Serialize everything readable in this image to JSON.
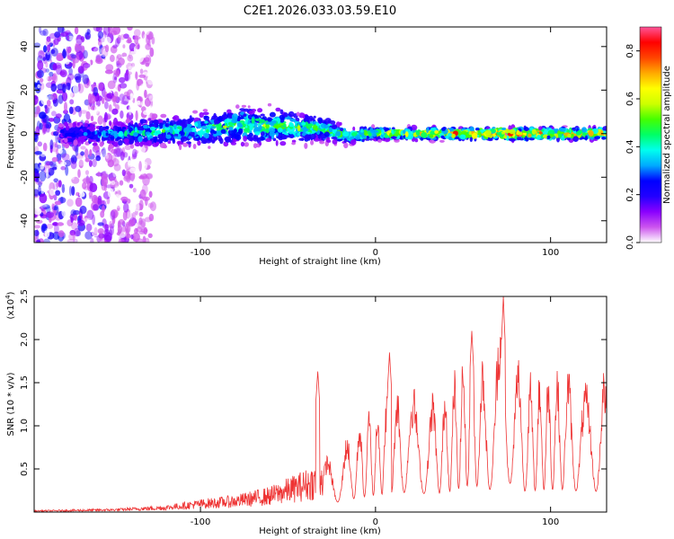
{
  "title": "C2E1.2026.033.03.59.E10",
  "chart_data": [
    {
      "type": "heatmap",
      "title": "C2E1.2026.033.03.59.E10",
      "xlabel": "Height of straight line (km)",
      "ylabel": "Frequency (Hz)",
      "xlim": [
        -195,
        132
      ],
      "ylim": [
        -50,
        49
      ],
      "xticks": [
        -100,
        0,
        100
      ],
      "yticks": [
        -40,
        -20,
        0,
        20,
        40
      ],
      "colorbar": {
        "label": "Normalized spectral amplitude",
        "range": [
          0.0,
          0.9
        ],
        "ticks": [
          0.0,
          0.2,
          0.4,
          0.6,
          0.8
        ],
        "colors": [
          "#ffffff",
          "#cc55ee",
          "#8a00ff",
          "#2200ff",
          "#0000ff",
          "#00aaff",
          "#00ffee",
          "#00ff66",
          "#44ff00",
          "#ccff00",
          "#ffff00",
          "#ffaa00",
          "#ff4400",
          "#ff0000",
          "#ff5599"
        ]
      },
      "band": [
        {
          "x": -175,
          "center": 0,
          "halfwidth": 6,
          "amp": 0.25
        },
        {
          "x": -150,
          "center": 0,
          "halfwidth": 6,
          "amp": 0.35
        },
        {
          "x": -125,
          "center": 1,
          "halfwidth": 7,
          "amp": 0.45
        },
        {
          "x": -100,
          "center": 2,
          "halfwidth": 8,
          "amp": 0.45
        },
        {
          "x": -75,
          "center": 4,
          "halfwidth": 9,
          "amp": 0.5
        },
        {
          "x": -50,
          "center": 3,
          "halfwidth": 8,
          "amp": 0.5
        },
        {
          "x": -30,
          "center": 2,
          "halfwidth": 6,
          "amp": 0.5
        },
        {
          "x": -15,
          "center": -1,
          "halfwidth": 4,
          "amp": 0.55
        },
        {
          "x": 0,
          "center": 0,
          "halfwidth": 3,
          "amp": 0.6
        },
        {
          "x": 25,
          "center": 0,
          "halfwidth": 3,
          "amp": 0.7
        },
        {
          "x": 50,
          "center": 0,
          "halfwidth": 3,
          "amp": 0.75
        },
        {
          "x": 75,
          "center": 0,
          "halfwidth": 3,
          "amp": 0.8
        },
        {
          "x": 100,
          "center": 0,
          "halfwidth": 3,
          "amp": 0.7
        },
        {
          "x": 130,
          "center": 0,
          "halfwidth": 3,
          "amp": 0.7
        }
      ],
      "noise_region": {
        "xmin": -195,
        "xmax": -127
      }
    },
    {
      "type": "line",
      "xlabel": "Height of straight line (km)",
      "ylabel": "SNR (10 * v/v)",
      "exponent_label": "(x10",
      "exponent_power": "4",
      "exponent_close": ")",
      "xlim": [
        -195,
        132
      ],
      "ylim": [
        0,
        2.5
      ],
      "xticks": [
        -100,
        0,
        100
      ],
      "yticks": [
        0.5,
        1.0,
        1.5,
        2.0,
        2.5
      ],
      "series": [
        {
          "name": "SNR",
          "color": "#ee3333",
          "envelope": [
            {
              "x": -195,
              "y": 0.02
            },
            {
              "x": -150,
              "y": 0.04
            },
            {
              "x": -120,
              "y": 0.08
            },
            {
              "x": -100,
              "y": 0.15
            },
            {
              "x": -80,
              "y": 0.2
            },
            {
              "x": -60,
              "y": 0.3
            },
            {
              "x": -45,
              "y": 0.45
            },
            {
              "x": -35,
              "y": 0.55
            },
            {
              "x": -20,
              "y": 0.8
            },
            {
              "x": -10,
              "y": 1.1
            },
            {
              "x": 0,
              "y": 1.3
            },
            {
              "x": 10,
              "y": 1.5
            },
            {
              "x": 20,
              "y": 1.5
            },
            {
              "x": 30,
              "y": 1.4
            },
            {
              "x": 40,
              "y": 1.5
            },
            {
              "x": 55,
              "y": 2.1
            },
            {
              "x": 65,
              "y": 1.7
            },
            {
              "x": 73,
              "y": 2.5
            },
            {
              "x": 85,
              "y": 1.6
            },
            {
              "x": 95,
              "y": 1.7
            },
            {
              "x": 110,
              "y": 1.75
            },
            {
              "x": 120,
              "y": 1.5
            },
            {
              "x": 132,
              "y": 1.7
            }
          ],
          "peaks": [
            {
              "x": -33,
              "y": 1.63
            },
            {
              "x": 8,
              "y": 1.85
            },
            {
              "x": 55,
              "y": 2.1
            },
            {
              "x": 73,
              "y": 2.5
            }
          ]
        }
      ]
    }
  ]
}
